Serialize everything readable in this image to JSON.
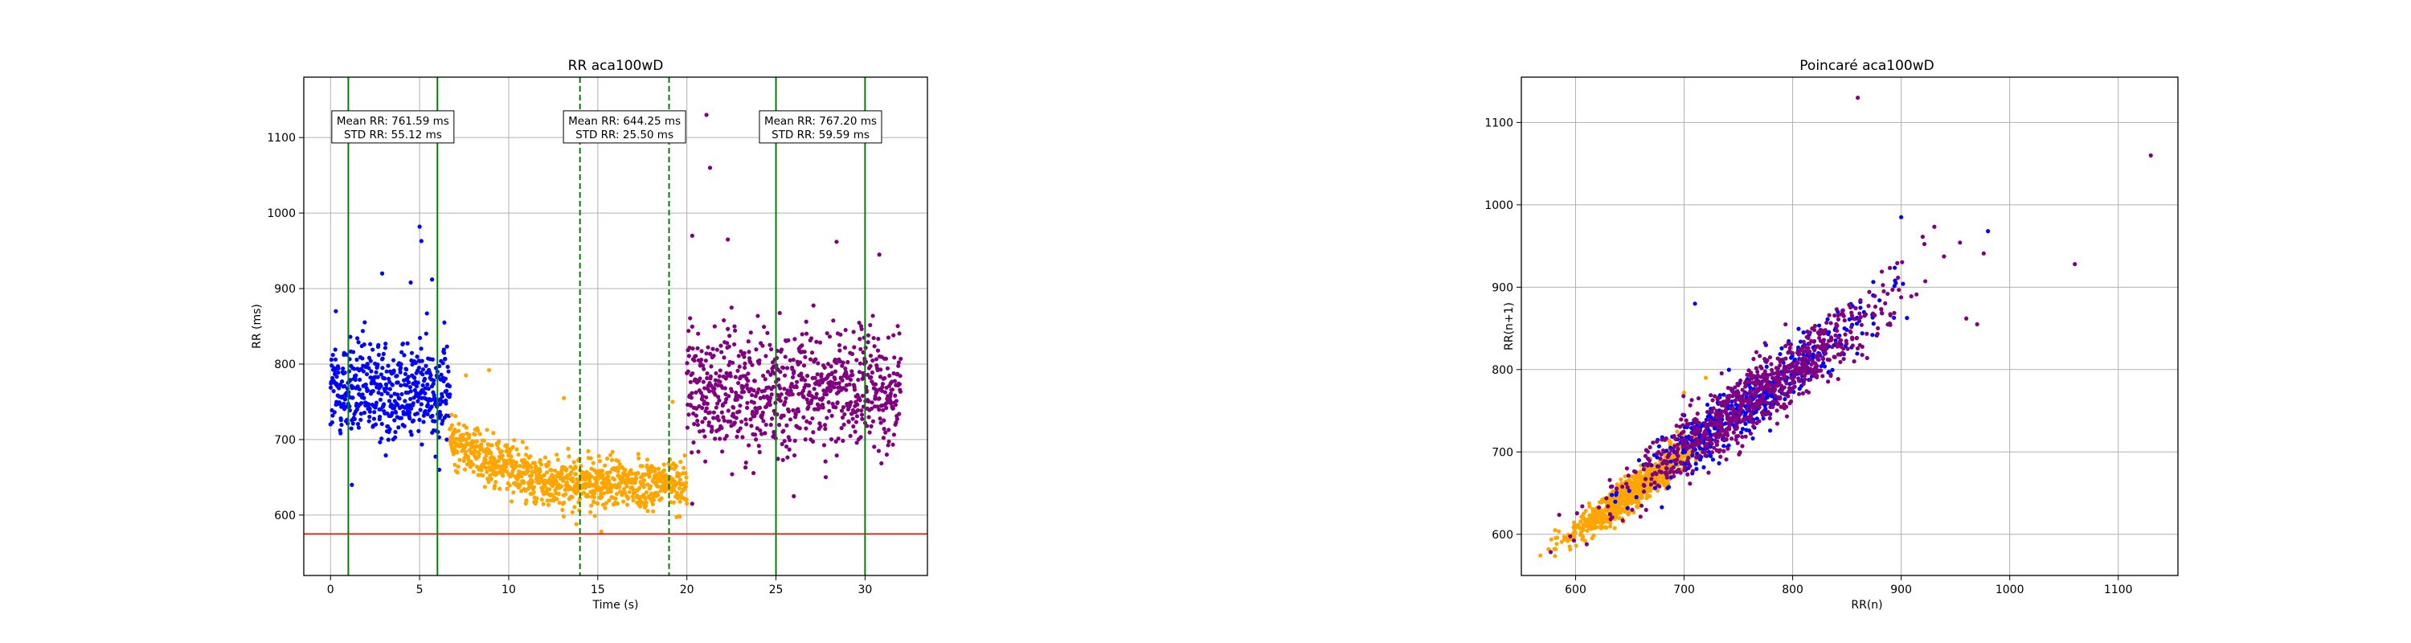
{
  "chart_data": [
    {
      "type": "scatter",
      "title": "RR aca100wD",
      "xlabel": "Time (s)",
      "ylabel": "RR (ms)",
      "xlim": [
        -1.5,
        33.5
      ],
      "ylim": [
        520,
        1180
      ],
      "xticks": [
        0,
        5,
        10,
        15,
        20,
        25,
        30
      ],
      "yticks": [
        600,
        700,
        800,
        900,
        1000,
        1100
      ],
      "grid": true,
      "series": [
        {
          "color": "#0000ff",
          "x_range": [
            0,
            6.7
          ],
          "center": 765,
          "spread": 55,
          "trend": 0,
          "count": 500,
          "outliers": [
            [
              5.0,
              982
            ],
            [
              5.1,
              963
            ],
            [
              2.9,
              920
            ],
            [
              5.7,
              912
            ],
            [
              4.5,
              908
            ],
            [
              0.3,
              870
            ],
            [
              6.1,
              660
            ],
            [
              1.2,
              640
            ]
          ]
        },
        {
          "color": "#ffa500",
          "x_range": [
            6.7,
            20.0
          ],
          "center": 700,
          "spread": 28,
          "trend": -58,
          "count": 900,
          "outliers": [
            [
              8.9,
              792
            ],
            [
              13.1,
              755
            ],
            [
              7.6,
              785
            ],
            [
              19.2,
              750
            ],
            [
              15.2,
              578
            ],
            [
              13.8,
              588
            ],
            [
              19.6,
              598
            ]
          ]
        },
        {
          "color": "#800080",
          "x_range": [
            20.0,
            32.0
          ],
          "center": 765,
          "spread": 65,
          "trend": 0,
          "count": 800,
          "outliers": [
            [
              21.1,
              1130
            ],
            [
              21.3,
              1060
            ],
            [
              20.3,
              970
            ],
            [
              22.3,
              965
            ],
            [
              28.4,
              962
            ],
            [
              30.8,
              945
            ],
            [
              20.3,
              615
            ],
            [
              26.0,
              625
            ]
          ]
        }
      ],
      "vlines": [
        {
          "x": 1.0,
          "color": "#008000",
          "style": "solid"
        },
        {
          "x": 6.0,
          "color": "#008000",
          "style": "solid"
        },
        {
          "x": 14.0,
          "color": "#008000",
          "style": "dashed"
        },
        {
          "x": 19.0,
          "color": "#008000",
          "style": "dashed"
        },
        {
          "x": 25.0,
          "color": "#008000",
          "style": "solid"
        },
        {
          "x": 30.0,
          "color": "#008000",
          "style": "solid"
        }
      ],
      "hline": {
        "y": 575,
        "color": "#ff0000"
      },
      "annotations": [
        {
          "x": 3.5,
          "y": 1112,
          "line1": "Mean RR: 761.59 ms",
          "line2": "STD RR: 55.12 ms"
        },
        {
          "x": 16.5,
          "y": 1112,
          "line1": "Mean RR: 644.25 ms",
          "line2": "STD RR: 25.50 ms"
        },
        {
          "x": 27.5,
          "y": 1112,
          "line1": "Mean RR: 767.20 ms",
          "line2": "STD RR: 59.59 ms"
        }
      ]
    },
    {
      "type": "scatter",
      "title": "Poincaré aca100wD",
      "xlabel": "RR(n)",
      "ylabel": "RR(n+1)",
      "xlim": [
        550,
        1155
      ],
      "ylim": [
        550,
        1155
      ],
      "xticks": [
        600,
        700,
        800,
        900,
        1000,
        1100
      ],
      "yticks": [
        600,
        700,
        800,
        900,
        1000,
        1100
      ],
      "grid": true,
      "series": [
        {
          "color": "#ffa500",
          "center": 655,
          "spread": 28,
          "count": 900,
          "outliers": [
            [
              575,
              582
            ],
            [
              600,
              610
            ],
            [
              720,
              790
            ],
            [
              700,
              772
            ]
          ]
        },
        {
          "color": "#0000ff",
          "center": 765,
          "spread": 50,
          "count": 500,
          "outliers": [
            [
              900,
              985
            ],
            [
              980,
              968
            ],
            [
              895,
              905
            ],
            [
              710,
              880
            ]
          ]
        },
        {
          "color": "#800080",
          "center": 767,
          "spread": 60,
          "count": 800,
          "outliers": [
            [
              1130,
              1060
            ],
            [
              860,
              1130
            ],
            [
              1060,
              928
            ],
            [
              970,
              855
            ],
            [
              960,
              862
            ]
          ]
        }
      ]
    }
  ]
}
